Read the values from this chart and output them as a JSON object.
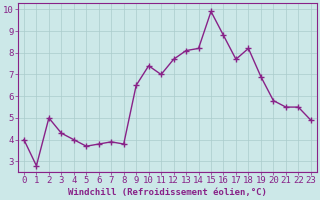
{
  "x": [
    0,
    1,
    2,
    3,
    4,
    5,
    6,
    7,
    8,
    9,
    10,
    11,
    12,
    13,
    14,
    15,
    16,
    17,
    18,
    19,
    20,
    21,
    22,
    23
  ],
  "y": [
    4.0,
    2.8,
    5.0,
    4.3,
    4.0,
    3.7,
    3.8,
    3.9,
    3.8,
    6.5,
    7.4,
    7.0,
    7.7,
    8.1,
    8.2,
    9.9,
    8.8,
    7.7,
    8.2,
    6.9,
    5.8,
    5.5,
    5.5,
    4.9
  ],
  "line_color": "#882288",
  "marker": "+",
  "marker_size": 4,
  "linewidth": 1.0,
  "xlabel": "Windchill (Refroidissement éolien,°C)",
  "ylabel": "",
  "xlim": [
    -0.5,
    23.5
  ],
  "ylim": [
    2.5,
    10.3
  ],
  "yticks": [
    3,
    4,
    5,
    6,
    7,
    8,
    9,
    10
  ],
  "xticks": [
    0,
    1,
    2,
    3,
    4,
    5,
    6,
    7,
    8,
    9,
    10,
    11,
    12,
    13,
    14,
    15,
    16,
    17,
    18,
    19,
    20,
    21,
    22,
    23
  ],
  "bg_color": "#cce8e8",
  "grid_color": "#aacccc",
  "axis_color": "#882288",
  "tick_color": "#882288",
  "xlabel_color": "#882288",
  "xlabel_fontsize": 6.5,
  "tick_fontsize": 6.5,
  "spine_color": "#882288"
}
